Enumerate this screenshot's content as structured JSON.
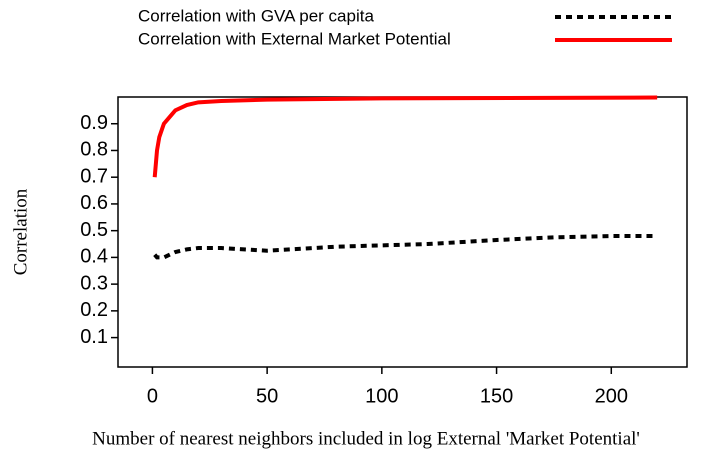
{
  "chart_data": {
    "type": "line",
    "xlabel": "Number of nearest neighbors included in log External 'Market Potential'",
    "ylabel": "Correlation",
    "xlim": [
      -15,
      233
    ],
    "ylim": [
      -0.01,
      1.0
    ],
    "xticks": [
      0,
      50,
      100,
      150,
      200
    ],
    "yticks": [
      0.1,
      0.2,
      0.3,
      0.4,
      0.5,
      0.6,
      0.7,
      0.8,
      0.9
    ],
    "legend": "top-right",
    "series": [
      {
        "name": "Correlation with GVA per capita",
        "color": "#000000",
        "style": "dotted",
        "x": [
          1,
          2,
          5,
          10,
          15,
          20,
          30,
          40,
          50,
          60,
          80,
          100,
          120,
          150,
          175,
          200,
          218
        ],
        "values": [
          0.41,
          0.4,
          0.4,
          0.42,
          0.43,
          0.435,
          0.435,
          0.43,
          0.425,
          0.43,
          0.44,
          0.445,
          0.45,
          0.465,
          0.475,
          0.48,
          0.48
        ]
      },
      {
        "name": "Correlation with External Market Potential",
        "color": "#ff0000",
        "style": "solid",
        "x": [
          1,
          2,
          3,
          5,
          8,
          10,
          15,
          20,
          30,
          50,
          100,
          220
        ],
        "values": [
          0.7,
          0.8,
          0.85,
          0.9,
          0.93,
          0.95,
          0.97,
          0.98,
          0.985,
          0.99,
          0.995,
          0.998
        ]
      }
    ]
  }
}
